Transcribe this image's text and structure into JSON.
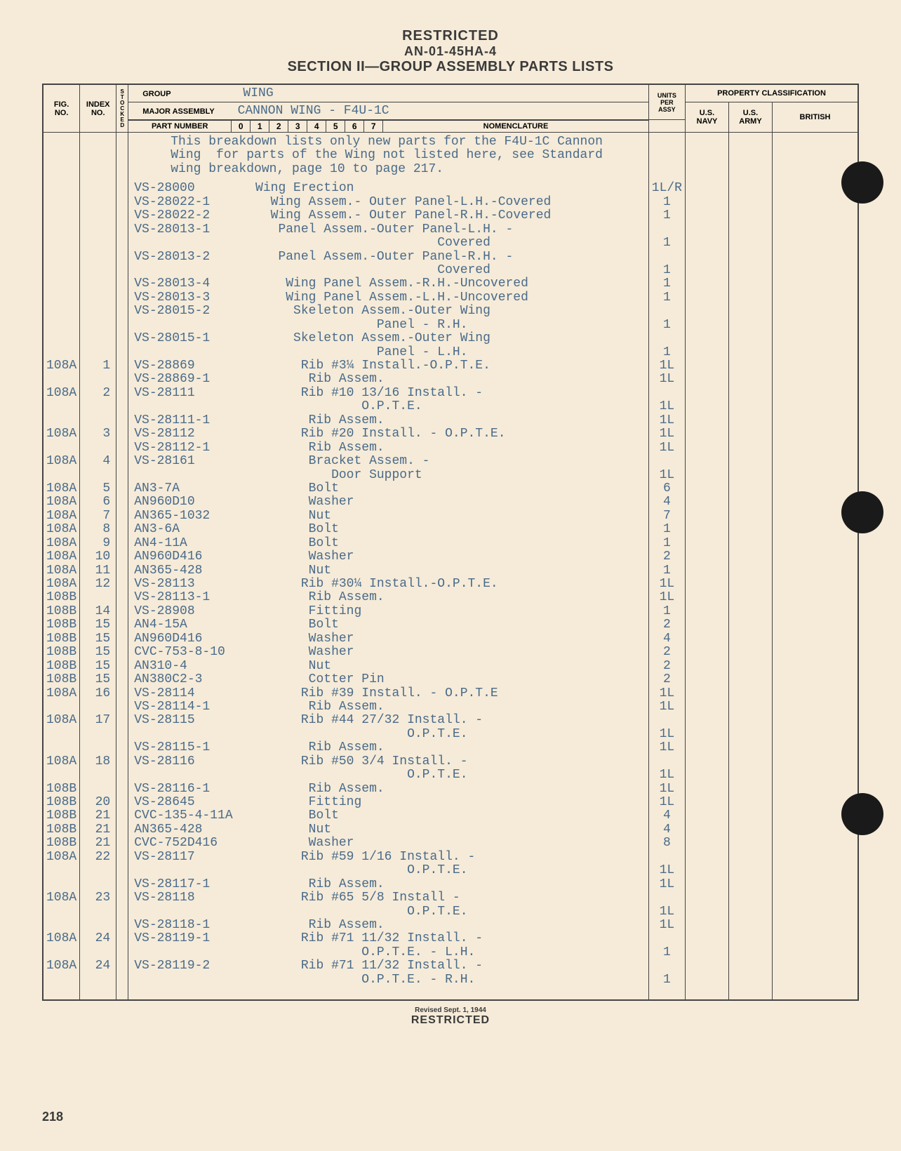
{
  "header": {
    "restricted": "RESTRICTED",
    "doc_id": "AN-01-45HA-4",
    "section": "SECTION II—GROUP ASSEMBLY PARTS LISTS"
  },
  "table_headers": {
    "fig_no": "FIG.\nNO.",
    "index_no": "INDEX\nNO.",
    "stock": "S\nT\nO\nC\nK\nE\nD",
    "group_label": "GROUP",
    "group_value": "WING",
    "major_label": "MAJOR ASSEMBLY",
    "major_value": "CANNON WING - F4U-1C",
    "part_number": "PART NUMBER",
    "cols": [
      "0",
      "1",
      "2",
      "3",
      "4",
      "5",
      "6",
      "7"
    ],
    "nomenclature": "NOMENCLATURE",
    "units": "UNITS\nPER\nASSY",
    "property": "PROPERTY CLASSIFICATION",
    "us_navy": "U.S.\nNAVY",
    "us_army": "U.S.\nARMY",
    "british": "BRITISH"
  },
  "intro": {
    "line1": "This breakdown lists only new parts for the F4U-1C Cannon",
    "line2": "Wing  for parts of the Wing not listed here, see Standard",
    "line3": "wing breakdown, page 10 to page 217."
  },
  "rows": [
    {
      "fig": "",
      "idx": "",
      "part": "VS-28000",
      "nom": "Wing Erection",
      "units": "1L/R"
    },
    {
      "fig": "",
      "idx": "",
      "part": "VS-28022-1",
      "nom": "  Wing Assem.- Outer Panel-L.H.-Covered",
      "units": "1"
    },
    {
      "fig": "",
      "idx": "",
      "part": "VS-28022-2",
      "nom": "  Wing Assem.- Outer Panel-R.H.-Covered",
      "units": "1"
    },
    {
      "fig": "",
      "idx": "",
      "part": "VS-28013-1",
      "nom": "   Panel Assem.-Outer Panel-L.H. -",
      "units": ""
    },
    {
      "fig": "",
      "idx": "",
      "part": "",
      "nom": "                        Covered",
      "units": "1"
    },
    {
      "fig": "",
      "idx": "",
      "part": "VS-28013-2",
      "nom": "   Panel Assem.-Outer Panel-R.H. -",
      "units": ""
    },
    {
      "fig": "",
      "idx": "",
      "part": "",
      "nom": "                        Covered",
      "units": "1"
    },
    {
      "fig": "",
      "idx": "",
      "part": "VS-28013-4",
      "nom": "    Wing Panel Assem.-R.H.-Uncovered",
      "units": "1"
    },
    {
      "fig": "",
      "idx": "",
      "part": "VS-28013-3",
      "nom": "    Wing Panel Assem.-L.H.-Uncovered",
      "units": "1"
    },
    {
      "fig": "",
      "idx": "",
      "part": "VS-28015-2",
      "nom": "     Skeleton Assem.-Outer Wing",
      "units": ""
    },
    {
      "fig": "",
      "idx": "",
      "part": "",
      "nom": "                Panel - R.H.",
      "units": "1"
    },
    {
      "fig": "",
      "idx": "",
      "part": "VS-28015-1",
      "nom": "     Skeleton Assem.-Outer Wing",
      "units": ""
    },
    {
      "fig": "",
      "idx": "",
      "part": "",
      "nom": "                Panel - L.H.",
      "units": "1"
    },
    {
      "fig": "108A",
      "idx": "1",
      "part": "VS-28869",
      "nom": "      Rib #3¼ Install.-O.P.T.E.",
      "units": "1L"
    },
    {
      "fig": "",
      "idx": "",
      "part": "VS-28869-1",
      "nom": "       Rib Assem.",
      "units": "1L"
    },
    {
      "fig": "108A",
      "idx": "2",
      "part": "VS-28111",
      "nom": "      Rib #10 13/16 Install. -",
      "units": ""
    },
    {
      "fig": "",
      "idx": "",
      "part": "",
      "nom": "              O.P.T.E.",
      "units": "1L"
    },
    {
      "fig": "",
      "idx": "",
      "part": "VS-28111-1",
      "nom": "       Rib Assem.",
      "units": "1L"
    },
    {
      "fig": "108A",
      "idx": "3",
      "part": "VS-28112",
      "nom": "      Rib #20 Install. - O.P.T.E.",
      "units": "1L"
    },
    {
      "fig": "",
      "idx": "",
      "part": "VS-28112-1",
      "nom": "       Rib Assem.",
      "units": "1L"
    },
    {
      "fig": "108A",
      "idx": "4",
      "part": "VS-28161",
      "nom": "       Bracket Assem. -",
      "units": ""
    },
    {
      "fig": "",
      "idx": "",
      "part": "",
      "nom": "          Door Support",
      "units": "1L"
    },
    {
      "fig": "108A",
      "idx": "5",
      "part": "AN3-7A",
      "nom": "       Bolt",
      "units": "6"
    },
    {
      "fig": "108A",
      "idx": "6",
      "part": "AN960D10",
      "nom": "       Washer",
      "units": "4"
    },
    {
      "fig": "108A",
      "idx": "7",
      "part": "AN365-1032",
      "nom": "       Nut",
      "units": "7"
    },
    {
      "fig": "108A",
      "idx": "8",
      "part": "AN3-6A",
      "nom": "       Bolt",
      "units": "1"
    },
    {
      "fig": "108A",
      "idx": "9",
      "part": "AN4-11A",
      "nom": "       Bolt",
      "units": "1"
    },
    {
      "fig": "108A",
      "idx": "10",
      "part": "AN960D416",
      "nom": "       Washer",
      "units": "2"
    },
    {
      "fig": "108A",
      "idx": "11",
      "part": "AN365-428",
      "nom": "       Nut",
      "units": "1"
    },
    {
      "fig": "108A",
      "idx": "12",
      "part": "VS-28113",
      "nom": "      Rib #30¼ Install.-O.P.T.E.",
      "units": "1L"
    },
    {
      "fig": "108B",
      "idx": "",
      "part": "VS-28113-1",
      "nom": "       Rib Assem.",
      "units": "1L"
    },
    {
      "fig": "108B",
      "idx": "14",
      "part": "VS-28908",
      "nom": "       Fitting",
      "units": "1"
    },
    {
      "fig": "108B",
      "idx": "15",
      "part": "AN4-15A",
      "nom": "       Bolt",
      "units": "2"
    },
    {
      "fig": "108B",
      "idx": "15",
      "part": "AN960D416",
      "nom": "       Washer",
      "units": "4"
    },
    {
      "fig": "108B",
      "idx": "15",
      "part": "CVC-753-8-10",
      "nom": "       Washer",
      "units": "2"
    },
    {
      "fig": "108B",
      "idx": "15",
      "part": "AN310-4",
      "nom": "       Nut",
      "units": "2"
    },
    {
      "fig": "108B",
      "idx": "15",
      "part": "AN380C2-3",
      "nom": "       Cotter Pin",
      "units": "2"
    },
    {
      "fig": "108A",
      "idx": "16",
      "part": "VS-28114",
      "nom": "      Rib #39 Install. - O.P.T.E",
      "units": "1L"
    },
    {
      "fig": "",
      "idx": "",
      "part": "VS-28114-1",
      "nom": "       Rib Assem.",
      "units": "1L"
    },
    {
      "fig": "108A",
      "idx": "17",
      "part": "VS-28115",
      "nom": "      Rib #44 27/32 Install. -",
      "units": ""
    },
    {
      "fig": "",
      "idx": "",
      "part": "",
      "nom": "                    O.P.T.E.",
      "units": "1L"
    },
    {
      "fig": "",
      "idx": "",
      "part": "VS-28115-1",
      "nom": "       Rib Assem.",
      "units": "1L"
    },
    {
      "fig": "108A",
      "idx": "18",
      "part": "VS-28116",
      "nom": "      Rib #50 3/4 Install. -",
      "units": ""
    },
    {
      "fig": "",
      "idx": "",
      "part": "",
      "nom": "                    O.P.T.E.",
      "units": "1L"
    },
    {
      "fig": "108B",
      "idx": "",
      "part": "VS-28116-1",
      "nom": "       Rib Assem.",
      "units": "1L"
    },
    {
      "fig": "108B",
      "idx": "20",
      "part": "VS-28645",
      "nom": "       Fitting",
      "units": "1L"
    },
    {
      "fig": "108B",
      "idx": "21",
      "part": "CVC-135-4-11A",
      "nom": "       Bolt",
      "units": "4"
    },
    {
      "fig": "108B",
      "idx": "21",
      "part": "AN365-428",
      "nom": "       Nut",
      "units": "4"
    },
    {
      "fig": "108B",
      "idx": "21",
      "part": "CVC-752D416",
      "nom": "       Washer",
      "units": "8"
    },
    {
      "fig": "108A",
      "idx": "22",
      "part": "VS-28117",
      "nom": "      Rib #59 1/16 Install. -",
      "units": ""
    },
    {
      "fig": "",
      "idx": "",
      "part": "",
      "nom": "                    O.P.T.E.",
      "units": "1L"
    },
    {
      "fig": "",
      "idx": "",
      "part": "VS-28117-1",
      "nom": "       Rib Assem.",
      "units": "1L"
    },
    {
      "fig": "108A",
      "idx": "23",
      "part": "VS-28118",
      "nom": "      Rib #65 5/8 Install -",
      "units": ""
    },
    {
      "fig": "",
      "idx": "",
      "part": "",
      "nom": "                    O.P.T.E.",
      "units": "1L"
    },
    {
      "fig": "",
      "idx": "",
      "part": "VS-28118-1",
      "nom": "       Rib Assem.",
      "units": "1L"
    },
    {
      "fig": "108A",
      "idx": "24",
      "part": "VS-28119-1",
      "nom": "      Rib #71 11/32 Install. -",
      "units": ""
    },
    {
      "fig": "",
      "idx": "",
      "part": "",
      "nom": "              O.P.T.E. - L.H.",
      "units": "1"
    },
    {
      "fig": "108A",
      "idx": "24",
      "part": "VS-28119-2",
      "nom": "      Rib #71 11/32 Install. -",
      "units": ""
    },
    {
      "fig": "",
      "idx": "",
      "part": "",
      "nom": "              O.P.T.E. - R.H.",
      "units": "1"
    }
  ],
  "footer": {
    "revised": "Revised Sept. 1, 1944",
    "restricted": "RESTRICTED",
    "page": "218"
  },
  "colors": {
    "page_bg": "#f5ebd8",
    "ink": "#3a3a3a",
    "type_ink": "#4a6a8a",
    "border": "#444444"
  }
}
